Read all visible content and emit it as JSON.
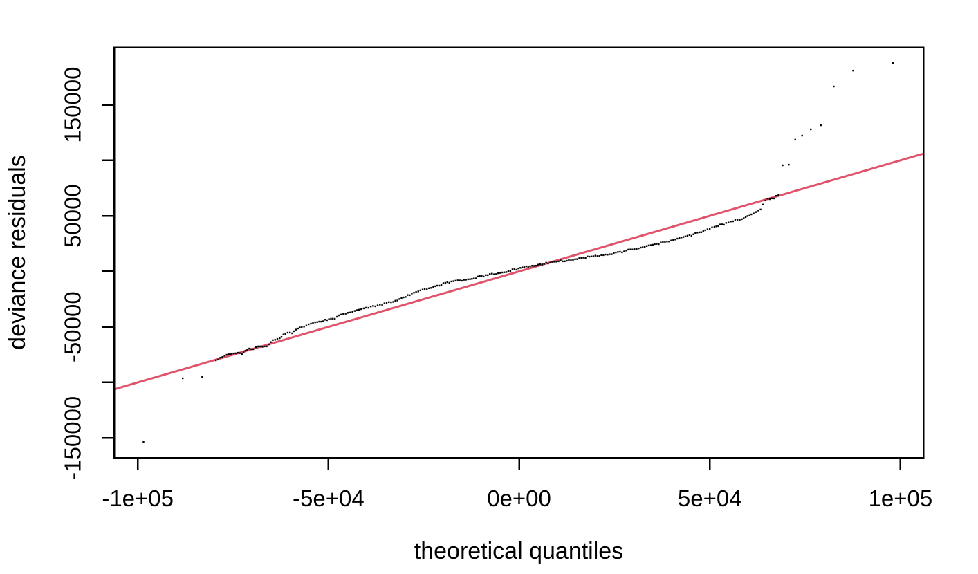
{
  "chart_data": {
    "type": "scatter",
    "title": "",
    "xlabel": "theoretical quantiles",
    "ylabel": "deviance residuals",
    "grid": false,
    "legend": null,
    "background_color": "#ffffff",
    "point_color": "#000000",
    "xlim": [
      -106200,
      106000
    ],
    "ylim": [
      -167900,
      201700
    ],
    "x_ticks": {
      "values": [
        -100000,
        -50000,
        0,
        50000,
        100000
      ],
      "labels": [
        "-1e+05",
        "-5e+04",
        "0e+00",
        "5e+04",
        "1e+05"
      ]
    },
    "y_ticks": {
      "values": [
        -150000,
        -100000,
        -50000,
        0,
        50000,
        100000,
        150000
      ],
      "labels": [
        "-150000",
        "",
        "-50000",
        "",
        "50000",
        "",
        "150000"
      ]
    },
    "reference_line": {
      "slope": 1,
      "intercept": 0,
      "color": "#DF536B"
    },
    "points": [
      [
        -98500,
        -153600
      ],
      [
        -88200,
        -96300
      ],
      [
        -83100,
        -95000
      ],
      [
        -79500,
        -80100
      ],
      [
        -76700,
        -75100
      ],
      [
        -74900,
        -73900
      ],
      [
        -72700,
        -74500
      ],
      [
        -71300,
        -70700
      ],
      [
        -69700,
        -70100
      ],
      [
        -68400,
        -67600
      ],
      [
        -66200,
        -67600
      ],
      [
        -64600,
        -62000
      ],
      [
        -62800,
        -60200
      ],
      [
        -61300,
        -56400
      ],
      [
        -59500,
        -55800
      ],
      [
        -57000,
        -50200
      ],
      [
        -54600,
        -47100
      ],
      [
        -52400,
        -45200
      ],
      [
        -50400,
        -44000
      ],
      [
        -48300,
        -42700
      ],
      [
        -46100,
        -38400
      ],
      [
        -43700,
        -36500
      ],
      [
        -41400,
        -34000
      ],
      [
        -39500,
        -32800
      ],
      [
        -37700,
        -31500
      ],
      [
        -35900,
        -30300
      ],
      [
        -33000,
        -27500
      ],
      [
        -28700,
        -21500
      ],
      [
        -22500,
        -14100
      ],
      [
        -18300,
        -10300
      ],
      [
        -13400,
        -7200
      ],
      [
        -9300,
        -4700
      ],
      [
        -4400,
        -1000
      ],
      [
        -700,
        1500
      ],
      [
        2900,
        4600
      ],
      [
        7600,
        7100
      ],
      [
        12500,
        9600
      ],
      [
        17400,
        12100
      ],
      [
        22100,
        14600
      ],
      [
        27000,
        17100
      ],
      [
        31900,
        21400
      ],
      [
        36600,
        24500
      ],
      [
        41500,
        29500
      ],
      [
        45200,
        32000
      ],
      [
        48800,
        37000
      ],
      [
        51200,
        40100
      ],
      [
        53700,
        42000
      ],
      [
        56100,
        45100
      ],
      [
        58400,
        47000
      ],
      [
        60900,
        51300
      ],
      [
        63300,
        55700
      ],
      [
        64600,
        63800
      ],
      [
        65700,
        65000
      ],
      [
        66800,
        65600
      ],
      [
        68000,
        68700
      ],
      [
        69100,
        95500
      ],
      [
        70700,
        96100
      ],
      [
        72400,
        118600
      ],
      [
        74200,
        122300
      ],
      [
        76500,
        127900
      ],
      [
        79100,
        131600
      ],
      [
        82500,
        166500
      ],
      [
        87600,
        180800
      ],
      [
        98000,
        187700
      ]
    ],
    "dense_range": [
      3,
      54
    ]
  }
}
